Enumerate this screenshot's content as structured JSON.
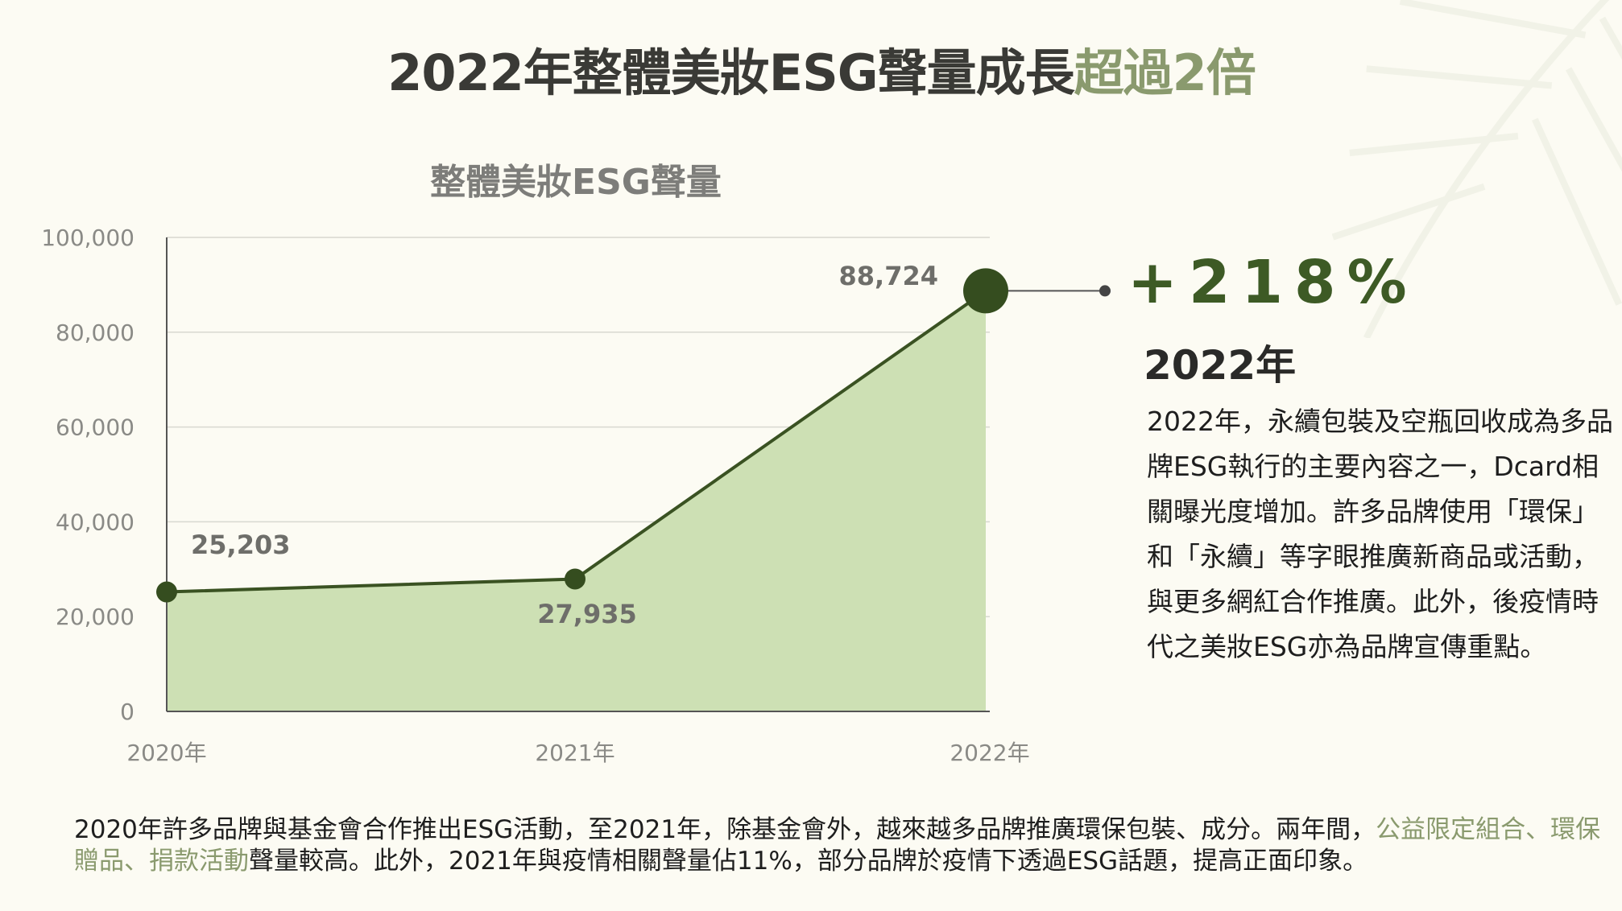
{
  "title": {
    "main": "2022年整體美妝ESG聲量成長",
    "highlight": "超過2倍"
  },
  "chart_data": {
    "type": "area",
    "title": "整體美妝ESG聲量",
    "categories": [
      "2020年",
      "2021年",
      "2022年"
    ],
    "values": [
      25203,
      27935,
      88724
    ],
    "data_labels": [
      "25,203",
      "27,935",
      "88,724"
    ],
    "yticks": [
      "0",
      "20,000",
      "40,000",
      "60,000",
      "80,000",
      "100,000"
    ],
    "ytick_values": [
      0,
      20000,
      40000,
      60000,
      80000,
      100000
    ],
    "ylim": [
      0,
      100000
    ],
    "grid": true,
    "colors": {
      "fill": "#cde0b4",
      "line": "#3a5222",
      "marker": "#354d1f"
    }
  },
  "callout": {
    "percent": "+218%",
    "year": "2022年",
    "description": "2022年，永續包裝及空瓶回收成為多品牌ESG執行的主要內容之一，Dcard相關曝光度增加。許多品牌使用「環保」和「永續」等字眼推廣新商品或活動，與更多網紅合作推廣。此外，後疫情時代之美妝ESG亦為品牌宣傳重點。"
  },
  "footer": {
    "part1": "2020年許多品牌與基金會合作推出ESG活動，至2021年，除基金會外，越來越多品牌推廣環保包裝、成分。兩年間，",
    "highlight": "公益限定組合、環保贈品、捐款活動",
    "part2": "聲量較高。此外，2021年與疫情相關聲量佔11%，部分品牌於疫情下透過ESG話題，提高正面印象。"
  },
  "accent_color": "#8a9a6e"
}
